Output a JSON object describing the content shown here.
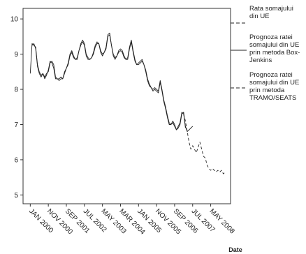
{
  "chart_data": {
    "type": "line",
    "title": "",
    "xlabel": "Date",
    "ylabel": "",
    "ylim": [
      4.75,
      10.3
    ],
    "yticks": [
      5,
      6,
      7,
      8,
      9,
      10
    ],
    "x_tick_labels": [
      "JAN 2000",
      "NOV 2000",
      "SEP 2001",
      "JUL 2002",
      "MAY 2003",
      "MAR 2004",
      "JAN 2005",
      "NOV 2005",
      "SEP 2006",
      "JUL 2007",
      "MAY 2008"
    ],
    "x_tick_index": [
      0,
      10,
      20,
      30,
      40,
      50,
      60,
      70,
      80,
      90,
      100
    ],
    "x_index_range": [
      -4,
      111
    ],
    "grid": false,
    "legend_position": "right",
    "series": [
      {
        "name": "Rata somajului din UE",
        "style": "solid",
        "start_index": 0,
        "values": [
          8.45,
          9.3,
          9.25,
          9.2,
          8.7,
          8.5,
          8.4,
          8.45,
          8.35,
          8.45,
          8.5,
          8.75,
          8.8,
          8.7,
          8.35,
          8.3,
          8.3,
          8.35,
          8.3,
          8.5,
          8.6,
          8.75,
          9.0,
          9.1,
          8.95,
          8.85,
          8.9,
          9.1,
          9.3,
          9.4,
          9.3,
          9.0,
          8.9,
          8.85,
          8.9,
          9.05,
          9.25,
          9.35,
          9.3,
          9.1,
          9.0,
          9.05,
          9.2,
          9.55,
          9.6,
          9.25,
          9.0,
          8.9,
          8.95,
          9.1,
          9.15,
          9.1,
          8.95,
          8.85,
          8.9,
          9.2,
          9.4,
          9.1,
          8.85,
          8.7,
          8.75,
          8.8,
          8.85,
          8.7,
          8.55,
          8.3,
          8.15,
          8.05,
          8.0,
          8.05,
          8.0,
          7.95,
          8.25,
          8.0,
          7.7,
          7.5,
          7.25,
          7.05,
          7.0,
          7.1,
          7.0,
          6.85,
          6.95,
          7.05,
          7.35,
          7.3,
          6.95,
          6.8,
          6.85,
          6.9,
          6.95
        ]
      },
      {
        "name": "Prognoza ratei somajului din UE prin metoda Box-Jenkins",
        "style": "solid",
        "start_index": 1,
        "values": [
          9.25,
          9.3,
          9.15,
          8.65,
          8.45,
          8.35,
          8.45,
          8.3,
          8.4,
          8.55,
          8.8,
          8.75,
          8.6,
          8.3,
          8.3,
          8.25,
          8.3,
          8.3,
          8.45,
          8.6,
          8.7,
          8.95,
          9.05,
          8.9,
          8.85,
          8.85,
          9.1,
          9.25,
          9.35,
          9.25,
          8.95,
          8.85,
          8.85,
          8.9,
          9.0,
          9.2,
          9.3,
          9.3,
          9.05,
          8.95,
          9.05,
          9.15,
          9.5,
          9.55,
          9.25,
          8.95,
          8.85,
          8.95,
          9.05,
          9.1,
          9.05,
          8.9,
          8.85,
          8.85,
          9.15,
          9.35,
          9.05,
          8.8,
          8.7,
          8.7,
          8.75,
          8.8,
          8.7,
          8.5,
          8.25,
          8.1,
          8.05,
          7.95,
          8.0,
          7.95,
          7.9,
          8.2,
          7.95,
          7.65,
          7.45,
          7.2,
          7.0,
          7.0,
          7.05,
          6.95,
          6.85,
          6.9,
          7.0,
          7.3,
          7.35,
          6.9
        ]
      },
      {
        "name": "Prognoza ratei somajului din UE prin metoda TRAMO/SEATS",
        "style": "dashed",
        "start_index": 85,
        "values": [
          7.3,
          7.1,
          6.8,
          6.5,
          6.3,
          6.4,
          6.3,
          6.2,
          6.35,
          6.5,
          6.3,
          6.1,
          6.05,
          5.85,
          5.75,
          5.7,
          5.75,
          5.7,
          5.65,
          5.7,
          5.65,
          5.7,
          5.6,
          5.65
        ]
      }
    ]
  }
}
